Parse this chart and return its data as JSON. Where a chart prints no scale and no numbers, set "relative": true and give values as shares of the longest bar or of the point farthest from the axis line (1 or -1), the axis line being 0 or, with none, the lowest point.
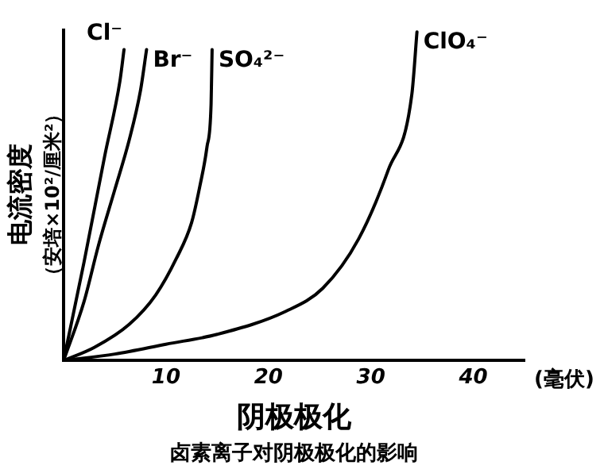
{
  "chart_data": {
    "type": "line",
    "title": "卤素离子对阴极极化的影响",
    "xlabel": "阴极极化",
    "ylabel": "电流密度（安培×10²/厘米²）",
    "annotations": [
      "(毫伏)"
    ],
    "relative": true,
    "xlim": [
      0,
      45
    ],
    "xticks": [
      10,
      20,
      30,
      40
    ],
    "grid": false,
    "legend": false,
    "marker": "none",
    "line_style": "solid",
    "series": [
      {
        "name": "Cl⁻",
        "color": "#000000",
        "x": [
          0,
          2,
          4,
          5.5,
          5.9
        ],
        "values": [
          0,
          0.3,
          0.62,
          0.85,
          0.946
        ]
      },
      {
        "name": "Br⁻",
        "color": "#000000",
        "x": [
          0,
          2,
          3.4,
          5,
          6.4,
          7.5,
          8.1
        ],
        "values": [
          0,
          0.18,
          0.35,
          0.52,
          0.67,
          0.82,
          0.946
        ]
      },
      {
        "name": "SO₄²⁻",
        "color": "#000000",
        "x": [
          0,
          3,
          6.4,
          9,
          11,
          12.5,
          13.3,
          14,
          14.4,
          14.5
        ],
        "values": [
          0,
          0.04,
          0.11,
          0.2,
          0.31,
          0.42,
          0.53,
          0.65,
          0.78,
          0.946
        ]
      },
      {
        "name": "ClO₄⁻",
        "color": "#000000",
        "x": [
          0,
          5,
          10,
          15,
          21.7,
          25.3,
          28.8,
          31.7,
          34,
          34.5
        ],
        "values": [
          0,
          0.02,
          0.05,
          0.08,
          0.15,
          0.22,
          0.37,
          0.58,
          0.81,
          1
        ]
      }
    ]
  }
}
